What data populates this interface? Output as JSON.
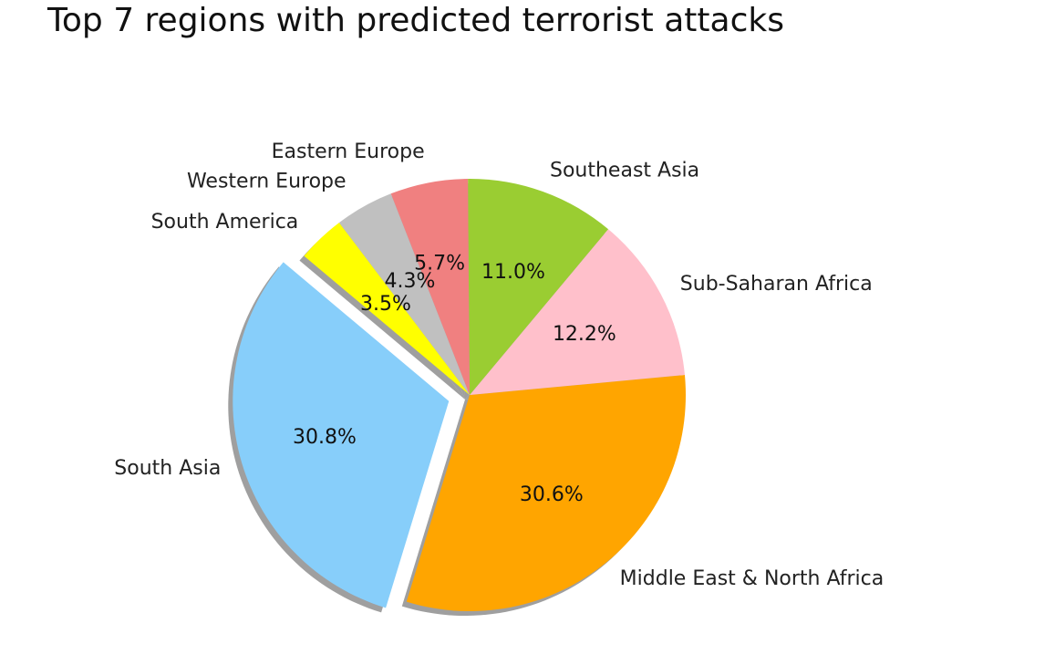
{
  "chart_data": {
    "type": "pie",
    "title": "Top 7 regions with predicted terrorist attacks",
    "slices": [
      {
        "label": "South Asia",
        "value": 30.8,
        "pct_label": "30.8%",
        "color": "#87cefa",
        "exploded": true
      },
      {
        "label": "Middle East & North Africa",
        "value": 30.6,
        "pct_label": "30.6%",
        "color": "#ffa500",
        "exploded": false
      },
      {
        "label": "Sub-Saharan Africa",
        "value": 12.2,
        "pct_label": "12.2%",
        "color": "#ffc0cb",
        "exploded": false
      },
      {
        "label": "Southeast Asia",
        "value": 11.0,
        "pct_label": "11.0%",
        "color": "#9acd32",
        "exploded": false
      },
      {
        "label": "Eastern Europe",
        "value": 5.7,
        "pct_label": "5.7%",
        "color": "#f08080",
        "exploded": false
      },
      {
        "label": "Western Europe",
        "value": 4.3,
        "pct_label": "4.3%",
        "color": "#c0c0c0",
        "exploded": false
      },
      {
        "label": "South America",
        "value": 3.5,
        "pct_label": "3.5%",
        "color": "#ffff00",
        "exploded": false
      }
    ],
    "shadow": true,
    "legend": "none"
  }
}
